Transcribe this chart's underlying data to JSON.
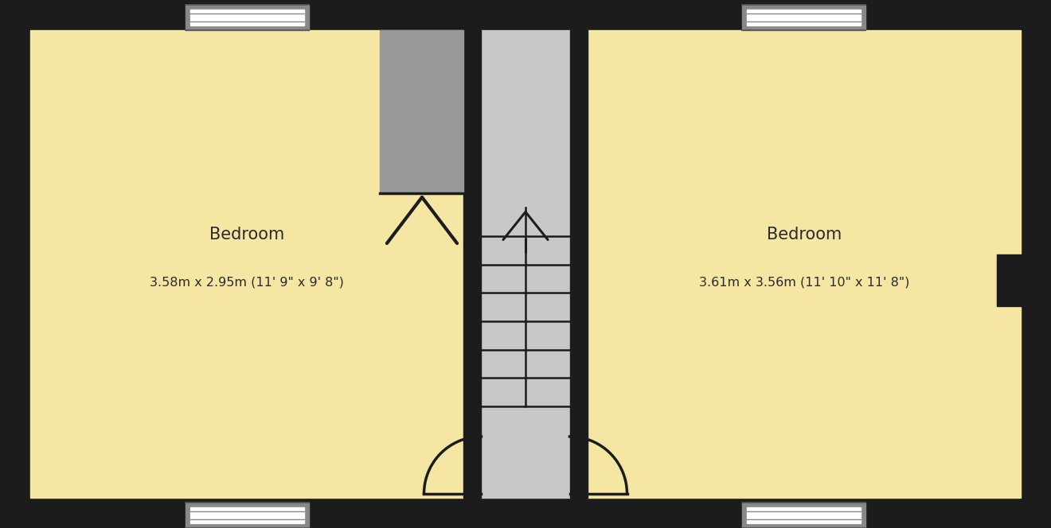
{
  "bg_color": "#1c1c1c",
  "floor_color": "#f5e6a3",
  "wall_color": "#1c1c1c",
  "stair_light": "#c8c8c8",
  "stair_dark": "#aaaaaa",
  "closet_color": "#999999",
  "win_face": "#ffffff",
  "win_frame": "#cccccc",
  "room1_label": "Bedroom",
  "room1_dims": "3.58m x 2.95m (11' 9\" x 9' 8\")",
  "room2_label": "Bedroom",
  "room2_dims": "3.61m x 3.56m (11' 10\" x 11' 8\")",
  "label_fontsize": 15,
  "dims_fontsize": 11.5
}
